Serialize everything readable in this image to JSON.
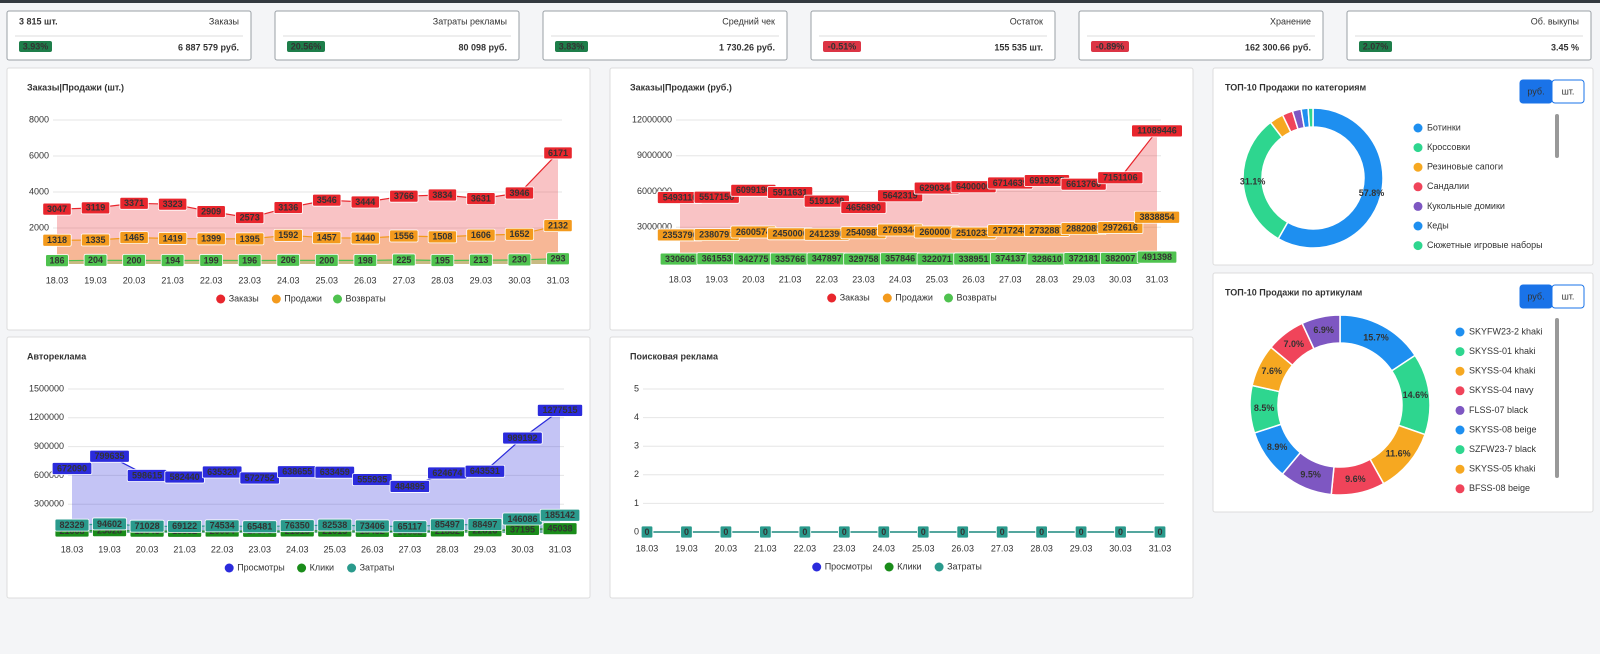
{
  "kpis": [
    {
      "label": "3 815 шт.",
      "title": "Заказы",
      "badge": "3.93%",
      "badge_color": "#1e7e4a",
      "value": "6 887 579 руб."
    },
    {
      "title": "Затраты рекламы",
      "badge": "20.56%",
      "badge_color": "#1e7e4a",
      "value": "80 098 руб."
    },
    {
      "title": "Средний чек",
      "badge": "3.83%",
      "badge_color": "#1e7e4a",
      "value": "1 730.26 руб."
    },
    {
      "title": "Остаток",
      "badge": "-0.51%",
      "badge_color": "#dc3545",
      "value": "155 535 шт."
    },
    {
      "title": "Хранение",
      "badge": "-0.89%",
      "badge_color": "#dc3545",
      "value": "162 300.66 руб."
    },
    {
      "title": "Об. выкупы",
      "badge": "2.07%",
      "badge_color": "#1e7e4a",
      "value": "3.45 %"
    }
  ],
  "chart_data": [
    {
      "type": "line",
      "title": "Заказы|Продажи (шт.)",
      "categories": [
        "18.03",
        "19.03",
        "20.03",
        "21.03",
        "22.03",
        "23.03",
        "24.03",
        "25.03",
        "26.03",
        "27.03",
        "28.03",
        "29.03",
        "30.03",
        "31.03"
      ],
      "ylim": [
        0,
        8000
      ],
      "yticks": [
        2000,
        4000,
        6000,
        8000
      ],
      "grid": true,
      "series": [
        {
          "name": "Заказы",
          "color": "#e8262d",
          "values": [
            3047,
            3119,
            3371,
            3323,
            2909,
            2573,
            3136,
            3546,
            3444,
            3766,
            3834,
            3631,
            3946,
            6171
          ]
        },
        {
          "name": "Продажи",
          "color": "#f39a1d",
          "values": [
            1318,
            1335,
            1465,
            1419,
            1399,
            1395,
            1592,
            1457,
            1440,
            1556,
            1508,
            1606,
            1652,
            2132
          ]
        },
        {
          "name": "Возвраты",
          "color": "#4fc24f",
          "values": [
            186,
            204,
            200,
            194,
            199,
            196,
            206,
            200,
            198,
            225,
            195,
            213,
            230,
            293
          ]
        }
      ]
    },
    {
      "type": "line",
      "title": "Заказы|Продажи (руб.)",
      "categories": [
        "18.03",
        "19.03",
        "20.03",
        "21.03",
        "22.03",
        "23.03",
        "24.03",
        "25.03",
        "26.03",
        "27.03",
        "28.03",
        "29.03",
        "30.03",
        "31.03"
      ],
      "ylim": [
        0,
        12000000
      ],
      "yticks": [
        3000000,
        6000000,
        9000000,
        12000000
      ],
      "grid": true,
      "series": [
        {
          "name": "Заказы",
          "color": "#e8262d",
          "values": [
            5493116,
            5517150,
            6099190,
            5911631,
            5191249,
            4656890,
            5642319,
            6290344,
            6400000,
            6714639,
            6919327,
            6613760,
            7151106,
            11089446
          ]
        },
        {
          "name": "Продажи",
          "color": "#f39a1d",
          "values": [
            2353796,
            2380791,
            2600574,
            2450000,
            2412390,
            2540987,
            2769344,
            2600000,
            2510233,
            2717248,
            2732887,
            2882085,
            2972616,
            3838854
          ]
        },
        {
          "name": "Возвраты",
          "color": "#4fc24f",
          "values": [
            330606,
            361553,
            342775,
            335766,
            347897,
            329758,
            357846,
            322071,
            338951,
            374137,
            328610,
            372181,
            382007,
            491398
          ]
        }
      ]
    },
    {
      "type": "donut",
      "title": "ТОП-10 Продажи по категориям",
      "buttons": [
        "руб.",
        "шт."
      ],
      "categories": [
        "Ботинки",
        "Кроссовки",
        "Резиновые сапоги",
        "Сандалии",
        "Кукольные домики",
        "Кеды",
        "Сюжетные игровые наборы"
      ],
      "values": [
        57.8,
        31.1,
        3.2,
        2.4,
        2.0,
        1.6,
        1.1
      ],
      "value_labels": [
        "57.8%",
        "31.1%",
        null,
        null,
        null,
        null,
        null
      ],
      "colors": [
        "#1e8ff0",
        "#2ed68f",
        "#f6a821",
        "#f0445a",
        "#7e57c2",
        "#1e8ff0",
        "#2ed68f"
      ]
    },
    {
      "type": "line",
      "title": "Авторекламa",
      "categories": [
        "18.03",
        "19.03",
        "20.03",
        "21.03",
        "22.03",
        "23.03",
        "24.03",
        "25.03",
        "26.03",
        "27.03",
        "28.03",
        "29.03",
        "30.03",
        "31.03"
      ],
      "ylim": [
        0,
        1500000
      ],
      "yticks": [
        300000,
        600000,
        900000,
        1200000,
        1500000
      ],
      "grid": true,
      "series": [
        {
          "name": "Просмотры",
          "color": "#2b2bdc",
          "values": [
            672090,
            799635,
            598615,
            582440,
            635320,
            572752,
            638655,
            633459,
            555935,
            484895,
            624674,
            643531,
            989192,
            1277515
          ]
        },
        {
          "name": "Клики",
          "color": "#1a8c1a",
          "values": [
            21008,
            25028,
            19846,
            18552,
            20004,
            17878,
            21515,
            21015,
            18432,
            16882,
            21882,
            22816,
            37195,
            45038
          ]
        },
        {
          "name": "Затраты",
          "color": "#2a9a8c",
          "values": [
            82329,
            94602,
            71028,
            69122,
            74534,
            65481,
            76350,
            82538,
            73406,
            65117,
            85497,
            88497,
            146086,
            185142
          ]
        }
      ]
    },
    {
      "type": "line",
      "title": "Поисковая реклама",
      "categories": [
        "18.03",
        "19.03",
        "20.03",
        "21.03",
        "22.03",
        "23.03",
        "24.03",
        "25.03",
        "26.03",
        "27.03",
        "28.03",
        "29.03",
        "30.03",
        "31.03"
      ],
      "ylim": [
        0,
        5
      ],
      "yticks": [
        0,
        1,
        2,
        3,
        4,
        5
      ],
      "grid": true,
      "series": [
        {
          "name": "Просмотры",
          "color": "#2b2bdc",
          "values": [
            0,
            0,
            0,
            0,
            0,
            0,
            0,
            0,
            0,
            0,
            0,
            0,
            0,
            0
          ]
        },
        {
          "name": "Клики",
          "color": "#1a8c1a",
          "values": [
            0,
            0,
            0,
            0,
            0,
            0,
            0,
            0,
            0,
            0,
            0,
            0,
            0,
            0
          ]
        },
        {
          "name": "Затраты",
          "color": "#2a9a8c",
          "values": [
            0,
            0,
            0,
            0,
            0,
            0,
            0,
            0,
            0,
            0,
            0,
            0,
            0,
            0
          ]
        }
      ]
    },
    {
      "type": "donut",
      "title": "ТОП-10 Продажи по артикулам",
      "buttons": [
        "руб.",
        "шт."
      ],
      "categories": [
        "SKYFW23-2 khaki",
        "SKYSS-01 khaki",
        "SKYSS-04 khaki",
        "SKYSS-04 navy",
        "FLSS-07 black",
        "SKYSS-08 beige",
        "SZFW23-7 black",
        "SKYSS-05 khaki",
        "BFSS-08 beige",
        null
      ],
      "values": [
        15.7,
        14.6,
        11.6,
        9.6,
        9.5,
        8.9,
        8.5,
        7.6,
        7.0,
        6.9
      ],
      "value_labels": [
        "15.7%",
        "14.6%",
        "11.6%",
        "9.6%",
        "9.5%",
        "8.9%",
        "8.5%",
        "7.6%",
        "7.0%",
        "6.9%"
      ],
      "colors": [
        "#1e8ff0",
        "#2ed68f",
        "#f6a821",
        "#f0445a",
        "#7e57c2",
        "#1e8ff0",
        "#2ed68f",
        "#f6a821",
        "#f0445a",
        "#7e57c2"
      ]
    }
  ]
}
